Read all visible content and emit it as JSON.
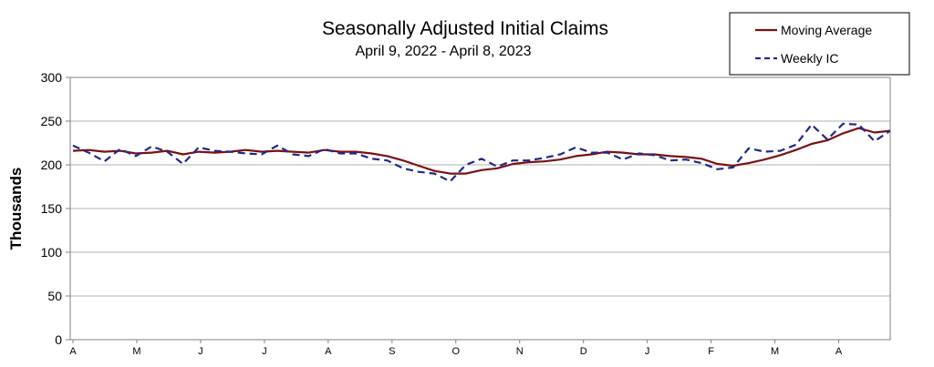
{
  "chart_data": {
    "type": "line",
    "title": "Seasonally Adjusted Initial Claims",
    "subtitle": "April 9, 2022 - April 8, 2023",
    "xlabel": "",
    "ylabel": "Thousands",
    "ylim": [
      0,
      300
    ],
    "yticks": [
      0,
      50,
      100,
      150,
      200,
      250,
      300
    ],
    "x_tick_labels": [
      "A",
      "M",
      "J",
      "J",
      "A",
      "S",
      "O",
      "N",
      "D",
      "J",
      "F",
      "M",
      "A"
    ],
    "grid": true,
    "legend_position": "top-right",
    "colors": {
      "moving_average": "#7b1113",
      "weekly_ic": "#1f2a8c"
    },
    "series": [
      {
        "name": "Moving Average",
        "style": "solid",
        "values": [
          216,
          217,
          215,
          216,
          213,
          214,
          216,
          212,
          215,
          214,
          215,
          217,
          215,
          216,
          215,
          214,
          217,
          215,
          215,
          213,
          210,
          205,
          199,
          193,
          190,
          190,
          194,
          196,
          201,
          203,
          204,
          206,
          210,
          212,
          215,
          214,
          212,
          212,
          210,
          209,
          207,
          201,
          199,
          202,
          206,
          211,
          217,
          224,
          228,
          236,
          242,
          237,
          239
        ]
      },
      {
        "name": "Weekly IC",
        "style": "dashed",
        "values": [
          222,
          214,
          204,
          218,
          210,
          221,
          215,
          201,
          220,
          216,
          215,
          213,
          212,
          222,
          212,
          210,
          218,
          213,
          213,
          207,
          205,
          196,
          192,
          190,
          181,
          200,
          207,
          198,
          205,
          205,
          208,
          212,
          220,
          214,
          214,
          206,
          213,
          211,
          205,
          206,
          202,
          195,
          197,
          219,
          215,
          216,
          223,
          246,
          229,
          247,
          246,
          227,
          239
        ]
      }
    ]
  }
}
